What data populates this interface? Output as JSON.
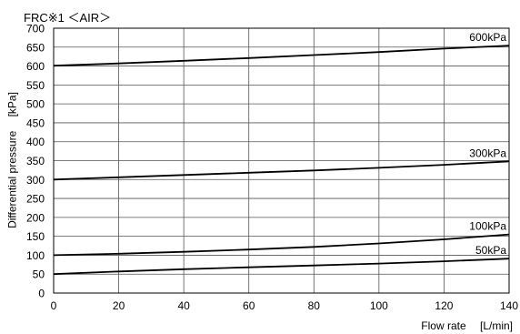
{
  "chart_data": {
    "type": "line",
    "title": "FRC※1 ＜AIR＞",
    "xlabel": "Flow rate 　[L/min]",
    "ylabel": "Differential pressure 　[kPa]",
    "xlim": [
      0,
      140
    ],
    "ylim": [
      0,
      700
    ],
    "xticks": [
      0,
      20,
      40,
      60,
      80,
      100,
      120,
      140
    ],
    "yticks": [
      0,
      50,
      100,
      150,
      200,
      250,
      300,
      350,
      400,
      450,
      500,
      550,
      600,
      650,
      700
    ],
    "grid": true,
    "legend": "none",
    "series": [
      {
        "name": "600kPa",
        "x": [
          0,
          20,
          40,
          60,
          80,
          100,
          120,
          140
        ],
        "y": [
          601,
          607,
          614,
          621,
          629,
          637,
          646,
          654
        ]
      },
      {
        "name": "300kPa",
        "x": [
          0,
          20,
          40,
          60,
          80,
          100,
          120,
          140
        ],
        "y": [
          300,
          306,
          312,
          318,
          324,
          331,
          339,
          348
        ]
      },
      {
        "name": "100kPa",
        "x": [
          0,
          20,
          40,
          60,
          80,
          100,
          120,
          140
        ],
        "y": [
          100,
          104,
          109,
          115,
          122,
          131,
          142,
          155
        ]
      },
      {
        "name": "50kPa",
        "x": [
          0,
          20,
          40,
          60,
          80,
          100,
          120,
          140
        ],
        "y": [
          50,
          57,
          63,
          68,
          73,
          78,
          84,
          91
        ]
      }
    ],
    "colors": {
      "line": "#000000",
      "grid": "#555555",
      "axis": "#000000",
      "plot_background": "#ffffff"
    }
  }
}
